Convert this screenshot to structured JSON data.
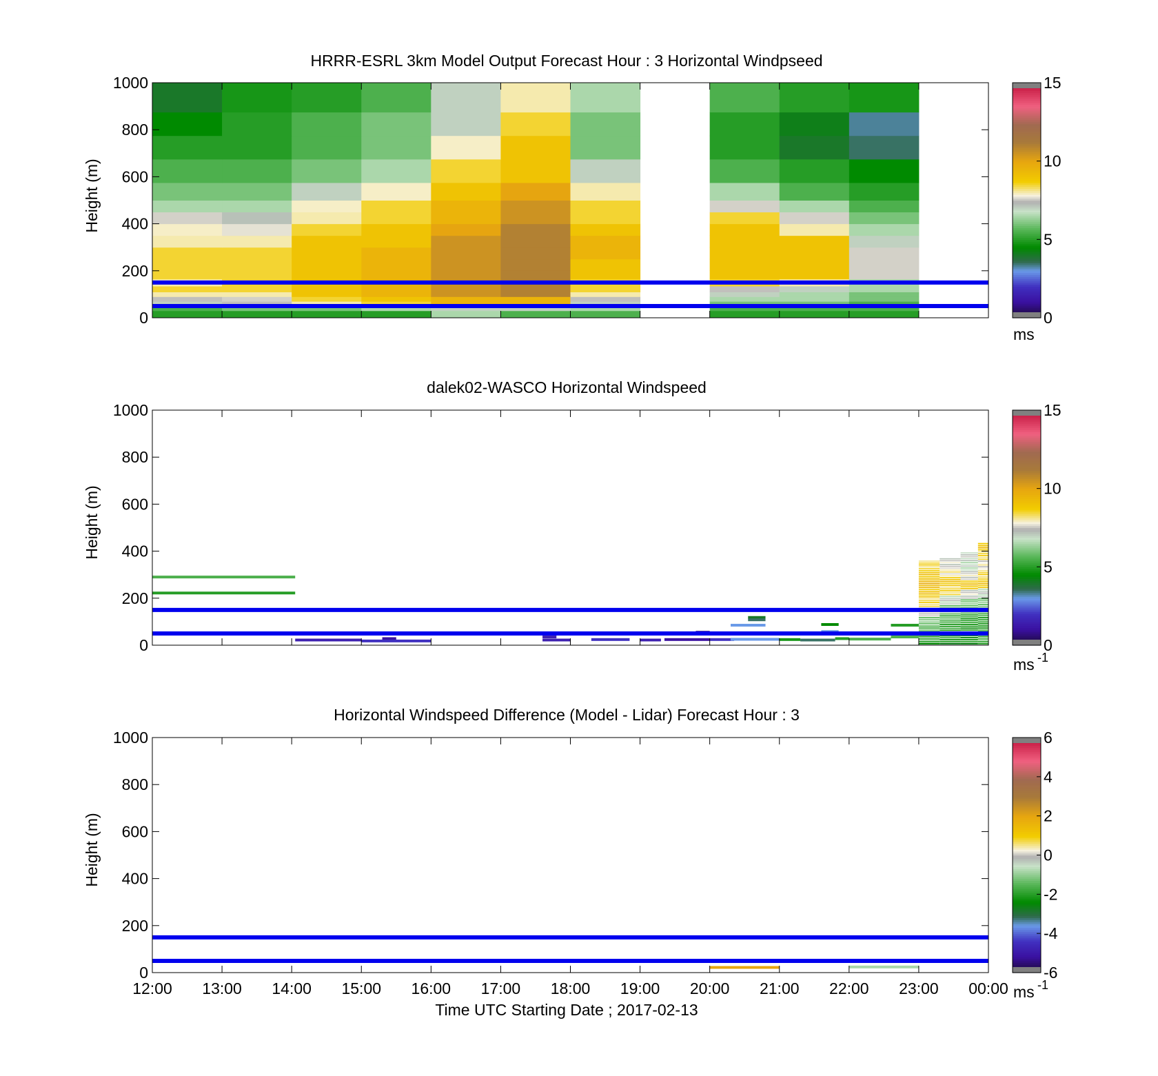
{
  "figure": {
    "xlabel": "Time UTC  Starting Date ; 2017-02-13",
    "x_ticks": [
      "12:00",
      "13:00",
      "14:00",
      "15:00",
      "16:00",
      "17:00",
      "18:00",
      "19:00",
      "20:00",
      "21:00",
      "22:00",
      "23:00",
      "00:00"
    ]
  },
  "chart_data": [
    {
      "type": "heatmap",
      "title": "HRRR-ESRL 3km Model Output   Forecast Hour : 3 Horizontal Windpseed",
      "ylabel": "Height (m)",
      "ylim": [
        0,
        1000
      ],
      "xlim": [
        "12:00",
        "00:00"
      ],
      "y_ticks": [
        "0",
        "200",
        "400",
        "600",
        "800",
        "1000"
      ],
      "colorbar": {
        "min": 0,
        "max": 15,
        "ticks": [
          "0",
          "5",
          "10",
          "15"
        ],
        "unit": "ms"
      },
      "reference_lines_m": [
        150,
        50
      ],
      "x_hours": [
        12,
        13,
        14,
        15,
        16,
        17,
        18,
        19,
        20,
        21,
        22,
        23
      ],
      "heights_m": [
        20,
        40,
        60,
        80,
        100,
        120,
        150,
        180,
        225,
        275,
        325,
        375,
        425,
        475,
        525,
        625,
        725,
        825,
        925
      ],
      "values_ms": [
        [
          5.0,
          5.0,
          5.0,
          5.0,
          6.5,
          5.5,
          5.5,
          null,
          5.0,
          5.0,
          5.0,
          null
        ],
        [
          5.5,
          6.0,
          6.0,
          6.5,
          7.0,
          7.0,
          6.5,
          null,
          5.5,
          5.5,
          5.5,
          null
        ],
        [
          7.0,
          7.5,
          8.0,
          8.5,
          9.5,
          9.5,
          7.0,
          null,
          6.0,
          6.0,
          5.5,
          null
        ],
        [
          7.5,
          7.6,
          8.5,
          9.0,
          9.5,
          9.5,
          7.5,
          null,
          6.5,
          6.5,
          6.0,
          null
        ],
        [
          8.0,
          8.0,
          9.0,
          9.5,
          10.5,
          11.0,
          8.0,
          null,
          7.0,
          6.5,
          6.0,
          null
        ],
        [
          8.5,
          8.5,
          9.0,
          9.5,
          10.5,
          11.0,
          8.5,
          null,
          7.5,
          7.0,
          6.5,
          null
        ],
        [
          8.0,
          8.5,
          9.0,
          9.5,
          10.5,
          11.0,
          8.5,
          null,
          8.5,
          8.0,
          6.5,
          null
        ],
        [
          8.5,
          8.5,
          9.0,
          9.5,
          10.5,
          11.0,
          9.0,
          null,
          9.0,
          9.0,
          7.6,
          null
        ],
        [
          8.5,
          8.5,
          9.0,
          9.5,
          10.5,
          11.0,
          9.0,
          null,
          9.0,
          9.0,
          7.6,
          null
        ],
        [
          8.5,
          8.5,
          9.0,
          9.5,
          10.5,
          11.0,
          9.5,
          null,
          9.0,
          9.0,
          7.6,
          null
        ],
        [
          8.0,
          8.0,
          9.0,
          9.0,
          10.5,
          11.0,
          9.5,
          null,
          9.0,
          9.0,
          7.0,
          null
        ],
        [
          7.9,
          7.7,
          8.5,
          9.0,
          10.0,
          11.0,
          9.0,
          null,
          9.0,
          8.0,
          6.5,
          null
        ],
        [
          7.6,
          7.2,
          8.0,
          8.5,
          9.5,
          10.5,
          8.5,
          null,
          8.5,
          7.6,
          6.0,
          null
        ],
        [
          6.5,
          6.5,
          7.9,
          8.5,
          9.5,
          10.5,
          8.5,
          null,
          7.6,
          6.5,
          5.5,
          null
        ],
        [
          6.0,
          6.0,
          7.0,
          7.9,
          9.0,
          10.0,
          8.0,
          null,
          6.5,
          5.5,
          5.0,
          null
        ],
        [
          5.5,
          5.5,
          6.0,
          6.5,
          8.5,
          9.0,
          7.0,
          null,
          5.5,
          5.0,
          4.5,
          null
        ],
        [
          5.0,
          5.0,
          5.5,
          6.0,
          7.9,
          9.0,
          6.0,
          null,
          5.0,
          4.0,
          3.5,
          null
        ],
        [
          4.5,
          5.0,
          5.5,
          6.0,
          7.0,
          8.5,
          6.0,
          null,
          5.0,
          4.2,
          3.3,
          null
        ],
        [
          4.0,
          4.8,
          5.0,
          5.5,
          7.0,
          8.0,
          6.5,
          null,
          5.5,
          5.0,
          4.8,
          null
        ]
      ]
    },
    {
      "type": "heatmap",
      "title": "dalek02-WASCO  Horizontal Windspeed",
      "ylabel": "Height (m)",
      "ylim": [
        0,
        1000
      ],
      "xlim": [
        "12:00",
        "00:00"
      ],
      "y_ticks": [
        "0",
        "200",
        "400",
        "600",
        "800",
        "1000"
      ],
      "colorbar": {
        "min": 0,
        "max": 15,
        "ticks": [
          "0",
          "5",
          "10",
          "15"
        ],
        "unit": "ms",
        "unit_exponent": "-1"
      },
      "reference_lines_m": [
        150,
        50
      ],
      "segments": [
        {
          "t0": 12.0,
          "t1": 14.05,
          "h": 290,
          "v": 5.5
        },
        {
          "t0": 12.0,
          "t1": 14.05,
          "h": 222,
          "v": 5.0
        },
        {
          "t0": 14.05,
          "t1": 15.0,
          "h": 22,
          "v": 1.5
        },
        {
          "t0": 15.3,
          "t1": 15.5,
          "h": 28,
          "v": 1.0
        },
        {
          "t0": 15.0,
          "t1": 16.0,
          "h": 18,
          "v": 2.0
        },
        {
          "t0": 17.6,
          "t1": 17.8,
          "h": 35,
          "v": 1.5
        },
        {
          "t0": 17.6,
          "t1": 18.0,
          "h": 22,
          "v": 1.5
        },
        {
          "t0": 18.3,
          "t1": 18.85,
          "h": 24,
          "v": 2.0
        },
        {
          "t0": 19.0,
          "t1": 19.3,
          "h": 22,
          "v": 1.5
        },
        {
          "t0": 19.35,
          "t1": 20.0,
          "h": 24,
          "v": 1.0
        },
        {
          "t0": 19.8,
          "t1": 20.0,
          "h": 55,
          "v": 0.8
        },
        {
          "t0": 20.0,
          "t1": 20.35,
          "h": 24,
          "v": 2.0
        },
        {
          "t0": 20.3,
          "t1": 20.8,
          "h": 85,
          "v": 3.0
        },
        {
          "t0": 20.55,
          "t1": 20.8,
          "h": 118,
          "v": 4.0
        },
        {
          "t0": 20.55,
          "t1": 20.8,
          "h": 108,
          "v": 3.5
        },
        {
          "t0": 20.3,
          "t1": 21.0,
          "h": 25,
          "v": 3.0
        },
        {
          "t0": 21.0,
          "t1": 21.3,
          "h": 24,
          "v": 4.8
        },
        {
          "t0": 21.3,
          "t1": 21.8,
          "h": 22,
          "v": 3.5
        },
        {
          "t0": 21.6,
          "t1": 21.85,
          "h": 88,
          "v": 4.5
        },
        {
          "t0": 21.6,
          "t1": 21.85,
          "h": 58,
          "v": 3.0
        },
        {
          "t0": 21.8,
          "t1": 22.0,
          "h": 28,
          "v": 5.0
        },
        {
          "t0": 22.0,
          "t1": 22.6,
          "h": 26,
          "v": 5.5
        },
        {
          "t0": 22.6,
          "t1": 23.0,
          "h": 85,
          "v": 5.0
        },
        {
          "t0": 22.6,
          "t1": 23.0,
          "h": 35,
          "v": 5.5
        }
      ],
      "columns": [
        {
          "t0": 23.0,
          "t1": 23.3,
          "top": 365,
          "profile": [
            [
              360,
              8.5
            ],
            [
              320,
              9.0
            ],
            [
              280,
              9.5
            ],
            [
              240,
              9.0
            ],
            [
              200,
              8.5
            ],
            [
              160,
              7.6
            ],
            [
              120,
              6.0
            ],
            [
              80,
              5.5
            ],
            [
              40,
              5.0
            ],
            [
              10,
              4.8
            ]
          ]
        },
        {
          "t0": 23.3,
          "t1": 23.6,
          "top": 378,
          "profile": [
            [
              370,
              7.5
            ],
            [
              330,
              8.0
            ],
            [
              290,
              9.0
            ],
            [
              250,
              8.5
            ],
            [
              210,
              7.0
            ],
            [
              170,
              6.0
            ],
            [
              130,
              5.5
            ],
            [
              90,
              5.0
            ],
            [
              50,
              4.8
            ],
            [
              10,
              4.5
            ]
          ]
        },
        {
          "t0": 23.6,
          "t1": 23.85,
          "top": 402,
          "profile": [
            [
              395,
              7.2
            ],
            [
              355,
              6.8
            ],
            [
              315,
              7.6
            ],
            [
              275,
              9.0
            ],
            [
              235,
              7.5
            ],
            [
              195,
              6.0
            ],
            [
              155,
              5.2
            ],
            [
              115,
              4.9
            ],
            [
              75,
              4.8
            ],
            [
              35,
              4.7
            ],
            [
              10,
              4.6
            ]
          ]
        },
        {
          "t0": 23.85,
          "t1": 24.0,
          "top": 440,
          "profile": [
            [
              435,
              9.0
            ],
            [
              400,
              8.5
            ],
            [
              360,
              7.8
            ],
            [
              320,
              8.5
            ],
            [
              280,
              9.0
            ],
            [
              240,
              7.0
            ],
            [
              200,
              6.0
            ],
            [
              160,
              5.5
            ],
            [
              120,
              5.0
            ],
            [
              80,
              5.0
            ],
            [
              40,
              5.2
            ],
            [
              10,
              5.5
            ]
          ]
        }
      ]
    },
    {
      "type": "heatmap",
      "title": "Horizontal Windspeed Difference (Model - Lidar) Forecast Hour : 3",
      "ylabel": "Height (m)",
      "ylim": [
        0,
        1000
      ],
      "xlim": [
        "12:00",
        "00:00"
      ],
      "y_ticks": [
        "0",
        "200",
        "400",
        "600",
        "800",
        "1000"
      ],
      "colorbar": {
        "min": -6,
        "max": 6,
        "ticks": [
          "-6",
          "-4",
          "-2",
          "0",
          "2",
          "4",
          "6"
        ],
        "unit": "ms",
        "unit_exponent": "-1"
      },
      "reference_lines_m": [
        150,
        50
      ],
      "segments": [
        {
          "t0": 20.0,
          "t1": 21.0,
          "h": 22,
          "v": 2.0
        },
        {
          "t0": 22.0,
          "t1": 23.0,
          "h": 24,
          "v": -0.8
        }
      ]
    }
  ]
}
